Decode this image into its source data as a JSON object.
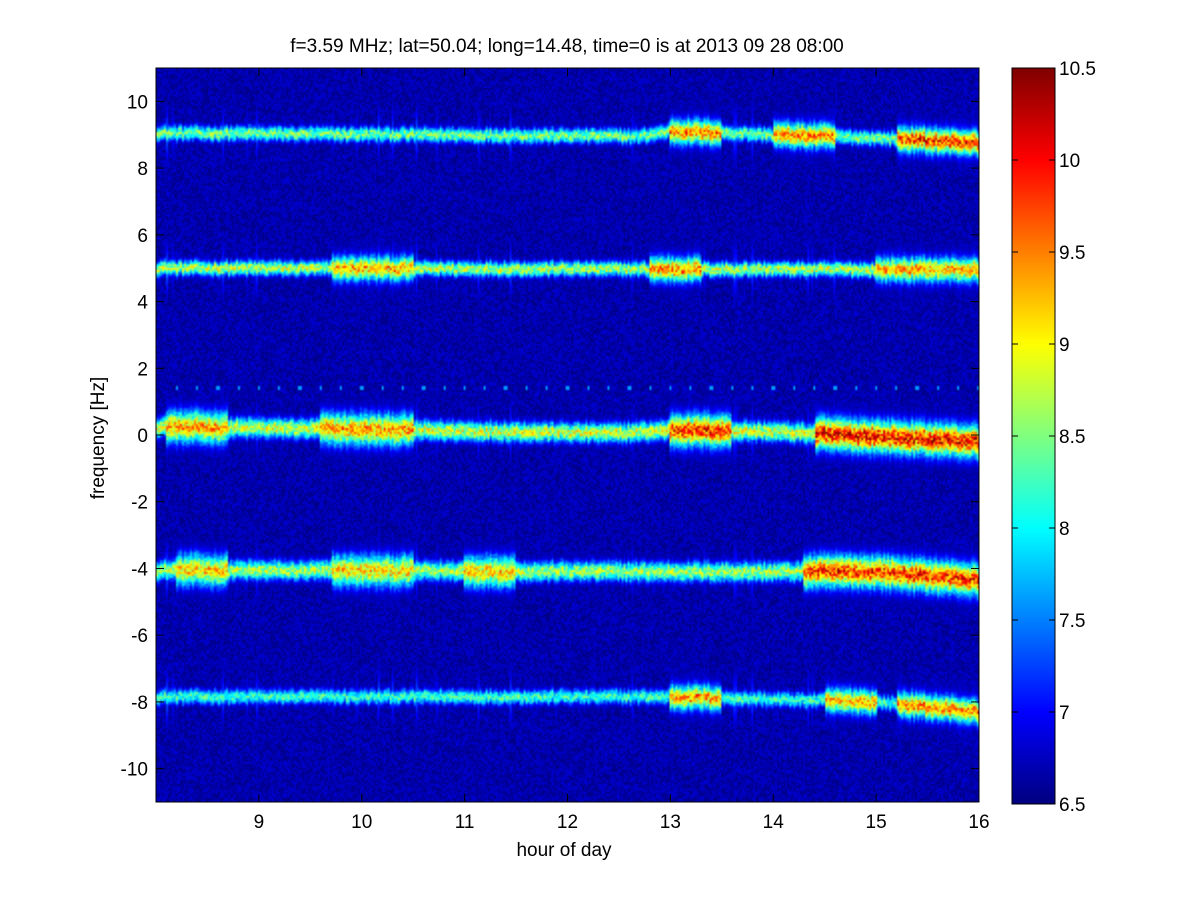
{
  "chart_data": {
    "type": "heatmap",
    "title": "f=3.59 MHz;  lat=50.04; long=14.48, time=0 is at 2013 09 28 08:00",
    "xlabel": "hour of day",
    "ylabel": "frequency [Hz]",
    "xlim": [
      8,
      16
    ],
    "ylim": [
      -11,
      11
    ],
    "x_ticks": [
      9,
      10,
      11,
      12,
      13,
      14,
      15,
      16
    ],
    "y_ticks": [
      -10,
      -8,
      -6,
      -4,
      -2,
      0,
      2,
      4,
      6,
      8,
      10
    ],
    "colorbar": {
      "colormap": "jet",
      "range": [
        6.5,
        10.5
      ],
      "ticks": [
        6.5,
        7,
        7.5,
        8,
        8.5,
        9,
        9.5,
        10,
        10.5
      ]
    },
    "background_color": "#00008b",
    "series": [
      {
        "center_hz": 9.0,
        "drift_hz": [
          [
            8,
            9.05
          ],
          [
            12.7,
            8.95
          ],
          [
            13,
            9.1
          ],
          [
            15,
            8.9
          ],
          [
            16,
            8.75
          ]
        ],
        "width_hz": 0.15,
        "peak_level": 9.0,
        "bursts": [
          [
            13.0,
            13.5,
            9.5
          ],
          [
            14.0,
            14.6,
            9.5
          ],
          [
            15.2,
            16.0,
            9.8
          ]
        ]
      },
      {
        "center_hz": 5.0,
        "drift_hz": [
          [
            8,
            5.0
          ],
          [
            16,
            4.95
          ]
        ],
        "width_hz": 0.15,
        "peak_level": 9.3,
        "bursts": [
          [
            9.7,
            10.5,
            8.5
          ],
          [
            12.8,
            13.3,
            9.5
          ],
          [
            15.0,
            16.0,
            8.8
          ]
        ]
      },
      {
        "center_hz": 0.2,
        "drift_hz": [
          [
            8,
            0.25
          ],
          [
            12.5,
            0.05
          ],
          [
            13,
            0.15
          ],
          [
            14,
            0.1
          ],
          [
            16,
            -0.2
          ]
        ],
        "width_hz": 0.2,
        "peak_level": 9.4,
        "bursts": [
          [
            8.1,
            8.7,
            8.6
          ],
          [
            9.6,
            10.5,
            8.4
          ],
          [
            13.0,
            13.6,
            9.8
          ],
          [
            14.4,
            16.0,
            10.0
          ]
        ]
      },
      {
        "center_hz": -4.1,
        "drift_hz": [
          [
            8,
            -4.05
          ],
          [
            12.8,
            -4.1
          ],
          [
            15,
            -4.1
          ],
          [
            16,
            -4.35
          ]
        ],
        "width_hz": 0.2,
        "peak_level": 9.2,
        "bursts": [
          [
            8.2,
            8.7,
            8.5
          ],
          [
            9.7,
            10.5,
            8.6
          ],
          [
            11.0,
            11.5,
            8.8
          ],
          [
            14.3,
            16.0,
            9.8
          ]
        ]
      },
      {
        "center_hz": -7.9,
        "drift_hz": [
          [
            8,
            -7.85
          ],
          [
            13,
            -7.85
          ],
          [
            15,
            -8.0
          ],
          [
            16,
            -8.3
          ]
        ],
        "width_hz": 0.15,
        "peak_level": 8.7,
        "bursts": [
          [
            13.0,
            13.5,
            9.4
          ],
          [
            14.5,
            15.0,
            9.3
          ],
          [
            15.2,
            16.0,
            9.5
          ]
        ]
      }
    ],
    "markers": {
      "freq_hz": 1.4,
      "hours": [
        8.2,
        8.4,
        8.6,
        8.8,
        9.0,
        9.2,
        9.4,
        9.6,
        9.8,
        10.0,
        10.2,
        10.4,
        10.6,
        10.8,
        11.0,
        11.2,
        11.4,
        11.6,
        11.8,
        12.0,
        12.2,
        12.4,
        12.6,
        12.8,
        13.0,
        13.2,
        13.4,
        13.6,
        13.8,
        14.0,
        14.2,
        14.4,
        14.6,
        14.8,
        15.0,
        15.2,
        15.4,
        15.6,
        15.8,
        16.0
      ],
      "level": 7.6
    }
  }
}
